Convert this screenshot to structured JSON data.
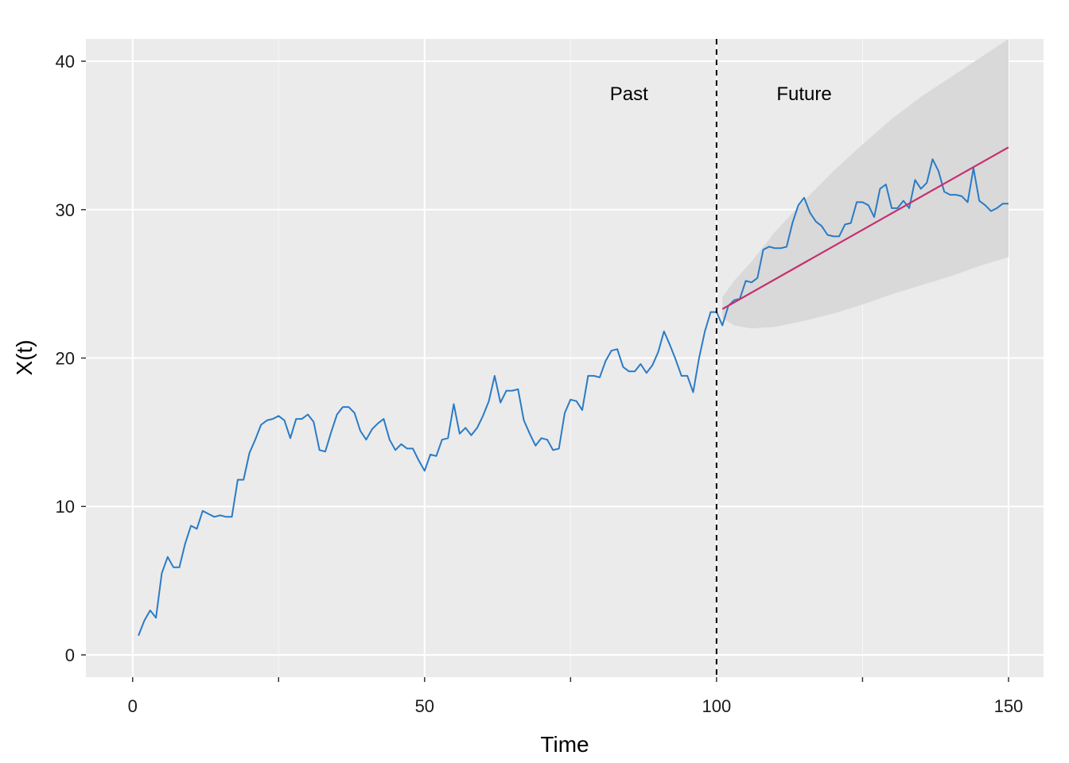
{
  "chart_data": {
    "type": "line",
    "xlabel": "Time",
    "ylabel": "X(t)",
    "xlim": [
      -8,
      156
    ],
    "ylim": [
      -1.5,
      41.5
    ],
    "x_ticks": [
      0,
      50,
      100,
      150
    ],
    "x_tick_labels": [
      "0",
      "50",
      "100",
      "150"
    ],
    "x_minor_ticks": [
      25,
      75,
      125
    ],
    "y_ticks": [
      0,
      10,
      20,
      30,
      40
    ],
    "y_tick_labels": [
      "0",
      "10",
      "20",
      "30",
      "40"
    ],
    "grid": true,
    "annotations": [
      {
        "text": "Past",
        "x": 85,
        "y": 37.8
      },
      {
        "text": "Future",
        "x": 115,
        "y": 37.8
      }
    ],
    "vline": {
      "x": 100,
      "style": "dashed",
      "color": "#000000"
    },
    "series": [
      {
        "role": "observed",
        "color": "#2a7bc6",
        "x_start": 1,
        "values": [
          1.3,
          2.3,
          3.0,
          2.5,
          5.5,
          6.6,
          5.9,
          5.9,
          7.5,
          8.7,
          8.5,
          9.7,
          9.5,
          9.3,
          9.4,
          9.3,
          9.3,
          11.8,
          11.8,
          13.6,
          14.5,
          15.5,
          15.8,
          15.9,
          16.1,
          15.8,
          14.6,
          15.9,
          15.9,
          16.2,
          15.7,
          13.8,
          13.7,
          15.0,
          16.2,
          16.7,
          16.7,
          16.3,
          15.1,
          14.5,
          15.2,
          15.6,
          15.9,
          14.5,
          13.8,
          14.2,
          13.9,
          13.9,
          13.1,
          12.4,
          13.5,
          13.4,
          14.5,
          14.6,
          16.9,
          14.9,
          15.3,
          14.8,
          15.3,
          16.1,
          17.1,
          18.8,
          17.0,
          17.8,
          17.8,
          17.9,
          15.8,
          14.9,
          14.1,
          14.6,
          14.5,
          13.8,
          13.9,
          16.3,
          17.2,
          17.1,
          16.5,
          18.8,
          18.8,
          18.7,
          19.8,
          20.5,
          20.6,
          19.4,
          19.1,
          19.1,
          19.6,
          19.0,
          19.5,
          20.4,
          21.8,
          20.9,
          19.9,
          18.8,
          18.8,
          17.7,
          20.0,
          21.8,
          23.1,
          23.1,
          22.2,
          23.5,
          23.9,
          24.0,
          25.2,
          25.1,
          25.4,
          27.3,
          27.5,
          27.4,
          27.4,
          27.5,
          29.1,
          30.3,
          30.8,
          29.8,
          29.2,
          28.9,
          28.3,
          28.2,
          28.2,
          29.0,
          29.1,
          30.5,
          30.5,
          30.3,
          29.5,
          31.4,
          31.7,
          30.1,
          30.1,
          30.6,
          30.1,
          32.0,
          31.4,
          31.8,
          33.4,
          32.6,
          31.2,
          31.0,
          31.0,
          30.9,
          30.5,
          32.8,
          30.6,
          30.3,
          29.9,
          30.1,
          30.4,
          30.4
        ]
      },
      {
        "role": "forecast",
        "color": "#c6306e",
        "x": [
          101,
          150
        ],
        "values": [
          23.3,
          34.2
        ]
      }
    ],
    "band": {
      "color": "#d9d9d9",
      "x": [
        101,
        103,
        106,
        110,
        115,
        120,
        125,
        130,
        135,
        140,
        145,
        150
      ],
      "lower": [
        22.7,
        22.2,
        22.0,
        22.1,
        22.5,
        23.0,
        23.6,
        24.3,
        24.9,
        25.5,
        26.2,
        26.8
      ],
      "upper": [
        24.1,
        25.2,
        26.5,
        28.5,
        30.6,
        32.6,
        34.4,
        36.1,
        37.6,
        38.9,
        40.2,
        41.5
      ]
    }
  }
}
